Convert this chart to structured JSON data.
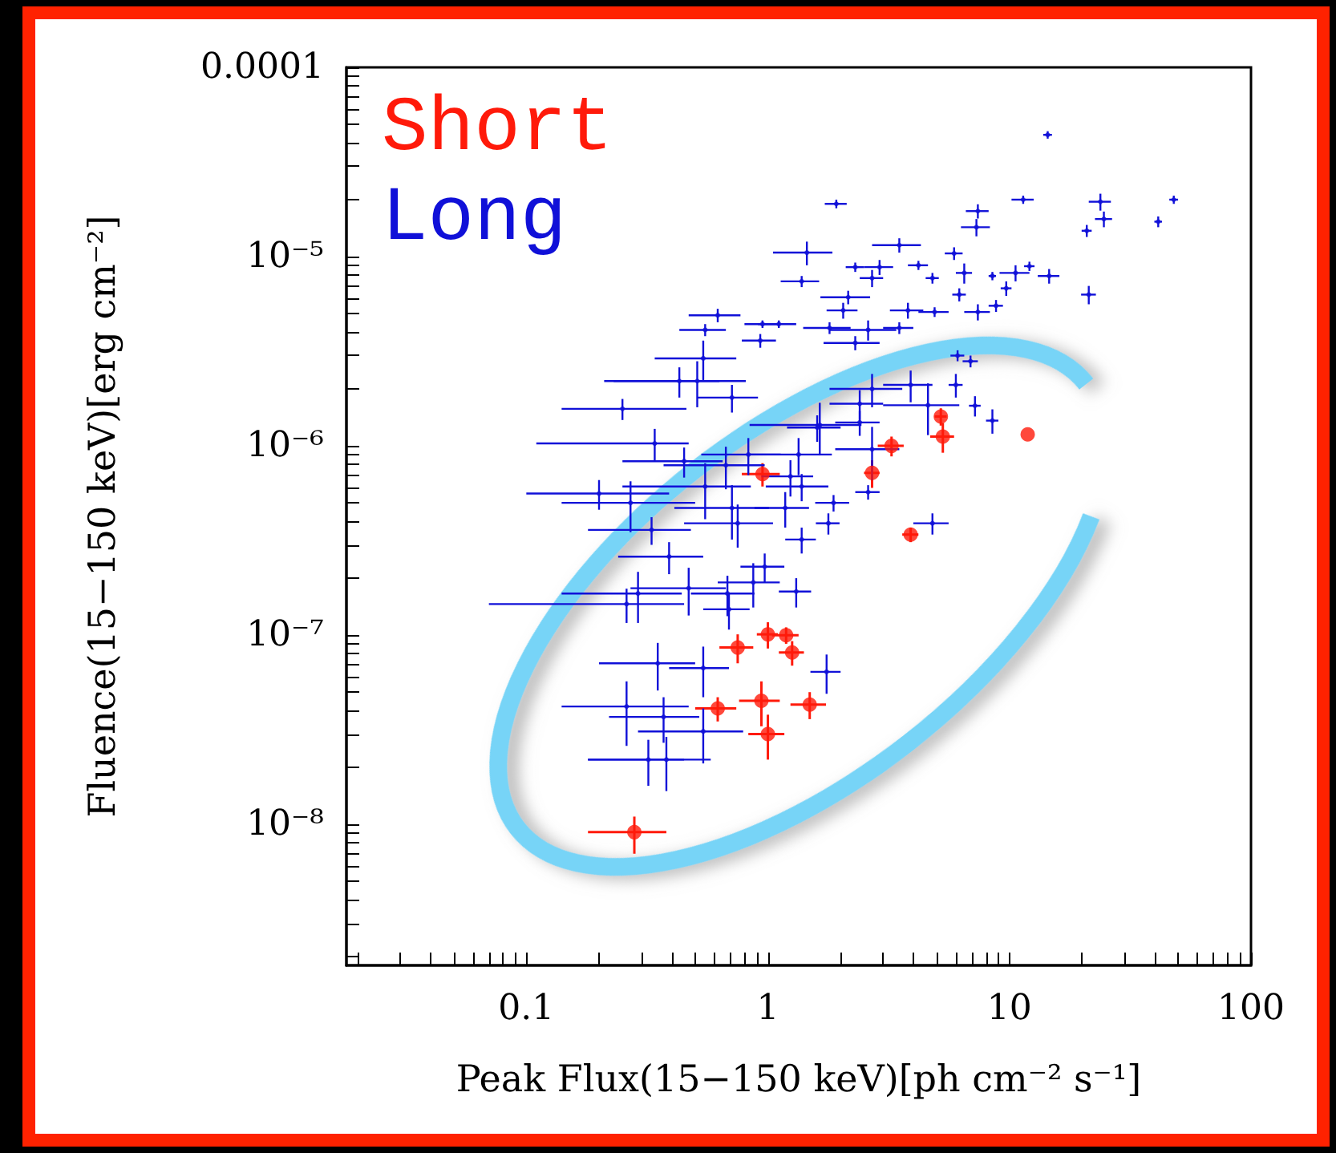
{
  "chart_data": {
    "type": "scatter",
    "xlabel": "Peak Flux(15−150 keV)[ph cm⁻² s⁻¹]",
    "ylabel": "Fluence(15−150 keV)[erg cm⁻²]",
    "log": "xy",
    "legend": "top left",
    "marker": "circle",
    "xlim": [
      0.018,
      100
    ],
    "ylim": [
      1.8e-09,
      0.0001
    ],
    "xticks": [
      {
        "value": 0.02,
        "label": null
      },
      {
        "value": 0.03,
        "label": null
      },
      {
        "value": 0.04,
        "label": null
      },
      {
        "value": 0.05,
        "label": null
      },
      {
        "value": 0.06,
        "label": null
      },
      {
        "value": 0.07,
        "label": null
      },
      {
        "value": 0.08,
        "label": null
      },
      {
        "value": 0.09,
        "label": null
      },
      0.1,
      {
        "value": 0.2,
        "label": null
      },
      {
        "value": 0.3,
        "label": null
      },
      {
        "value": 0.4,
        "label": null
      },
      {
        "value": 0.5,
        "label": null
      },
      {
        "value": 0.6,
        "label": null
      },
      {
        "value": 0.7,
        "label": null
      },
      {
        "value": 0.8,
        "label": null
      },
      {
        "value": 0.9,
        "label": null
      },
      1,
      {
        "value": 2,
        "label": null
      },
      {
        "value": 3,
        "label": null
      },
      {
        "value": 4,
        "label": null
      },
      {
        "value": 5,
        "label": null
      },
      {
        "value": 6,
        "label": null
      },
      {
        "value": 7,
        "label": null
      },
      {
        "value": 8,
        "label": null
      },
      {
        "value": 9,
        "label": null
      },
      10,
      {
        "value": 20,
        "label": null
      },
      {
        "value": 30,
        "label": null
      },
      {
        "value": 40,
        "label": null
      },
      {
        "value": 50,
        "label": null
      },
      {
        "value": 60,
        "label": null
      },
      {
        "value": 70,
        "label": null
      },
      {
        "value": 80,
        "label": null
      },
      {
        "value": 90,
        "label": null
      },
      100
    ],
    "yticks": [
      {
        "value": 2e-09,
        "label": null
      },
      {
        "value": 3e-09,
        "label": null
      },
      {
        "value": 4e-09,
        "label": null
      },
      {
        "value": 5e-09,
        "label": null
      },
      {
        "value": 6e-09,
        "label": null
      },
      {
        "value": 7e-09,
        "label": null
      },
      {
        "value": 8e-09,
        "label": null
      },
      {
        "value": 9e-09,
        "label": null
      },
      {
        "value": 1e-08,
        "label": "10⁻⁸"
      },
      {
        "value": 2e-08,
        "label": null
      },
      {
        "value": 3e-08,
        "label": null
      },
      {
        "value": 4e-08,
        "label": null
      },
      {
        "value": 5e-08,
        "label": null
      },
      {
        "value": 6e-08,
        "label": null
      },
      {
        "value": 7e-08,
        "label": null
      },
      {
        "value": 8e-08,
        "label": null
      },
      {
        "value": 9e-08,
        "label": null
      },
      {
        "value": 1e-07,
        "label": "10⁻⁷"
      },
      {
        "value": 2e-07,
        "label": null
      },
      {
        "value": 3e-07,
        "label": null
      },
      {
        "value": 4e-07,
        "label": null
      },
      {
        "value": 5e-07,
        "label": null
      },
      {
        "value": 6e-07,
        "label": null
      },
      {
        "value": 7e-07,
        "label": null
      },
      {
        "value": 8e-07,
        "label": null
      },
      {
        "value": 9e-07,
        "label": null
      },
      {
        "value": 1e-06,
        "label": "10⁻⁶"
      },
      {
        "value": 2e-06,
        "label": null
      },
      {
        "value": 3e-06,
        "label": null
      },
      {
        "value": 4e-06,
        "label": null
      },
      {
        "value": 5e-06,
        "label": null
      },
      {
        "value": 6e-06,
        "label": null
      },
      {
        "value": 7e-06,
        "label": null
      },
      {
        "value": 8e-06,
        "label": null
      },
      {
        "value": 9e-06,
        "label": null
      },
      {
        "value": 1e-05,
        "label": "10⁻⁵"
      },
      {
        "value": 2e-05,
        "label": null
      },
      {
        "value": 3e-05,
        "label": null
      },
      {
        "value": 4e-05,
        "label": null
      },
      {
        "value": 5e-05,
        "label": null
      },
      {
        "value": 6e-05,
        "label": null
      },
      {
        "value": 7e-05,
        "label": null
      },
      {
        "value": 8e-05,
        "label": null
      },
      {
        "value": 9e-05,
        "label": null
      },
      {
        "value": 0.0001,
        "label": "0.0001"
      }
    ],
    "series": [
      {
        "name": "Short",
        "color": "#ff1a0a",
        "x": [
          0.28,
          0.62,
          0.94,
          1.0,
          1.49,
          0.75,
          1.0,
          1.19,
          1.26,
          0.95,
          5.2,
          5.3,
          3.25,
          2.7,
          11.9,
          3.9
        ],
        "values": [
          9.1e-09,
          4.1e-08,
          4.5e-08,
          3e-08,
          4.3e-08,
          8.6e-08,
          1.01e-07,
          1e-07,
          8.1e-08,
          7.1e-07,
          1.43e-06,
          1.12e-06,
          1e-06,
          7.2e-07,
          1.15e-06,
          3.4e-07
        ],
        "xerrors": [
          [
            0.18,
            0.38
          ],
          0.12,
          0.18,
          0.17,
          0.25,
          0.12,
          0.1,
          0.15,
          0.15,
          0.17,
          0.3,
          0.6,
          0.4,
          0.2,
          null,
          0.3
        ],
        "errors": [
          [
            7e-09,
            1.1e-08
          ],
          6e-09,
          1.2e-08,
          8e-09,
          7e-09,
          1.5e-08,
          1.6e-08,
          1e-08,
          1.2e-08,
          1e-07,
          1.5e-07,
          2e-07,
          1.2e-07,
          1.2e-07,
          null,
          3e-08
        ]
      },
      {
        "name": "Long",
        "color": "#1010d8",
        "x": [
          14.4,
          11.4,
          23.8,
          47.9,
          24.6,
          41.3,
          20.9,
          7.4,
          7.3,
          1.92,
          5.9,
          3.5,
          1.45,
          2.3,
          2.9,
          2.7,
          1.38,
          4.2,
          4.8,
          6.5,
          8.5,
          10.6,
          12.1,
          14.6,
          6.2,
          9.7,
          21.3,
          2.15,
          2.05,
          3.8,
          4.9,
          7.4,
          8.8,
          1.8,
          3.5,
          2.6,
          2.3,
          6.1,
          6.9,
          3.9,
          6.0,
          2.7,
          4.6,
          7.2,
          8.5,
          2.4,
          2.7,
          1.64,
          0.62,
          0.55,
          0.95,
          1.11,
          0.93,
          0.54,
          0.43,
          0.25,
          0.51,
          0.71,
          0.34,
          0.2,
          0.45,
          0.55,
          0.67,
          0.83,
          1.24,
          1.18,
          0.71,
          0.27,
          0.26,
          0.29,
          0.47,
          0.68,
          0.35,
          0.54,
          0.26,
          0.37,
          0.54,
          0.32,
          0.38,
          1.75,
          1.31,
          0.69,
          0.97,
          0.87,
          1.38,
          0.39,
          0.33,
          0.75,
          1.78,
          1.87,
          4.8,
          2.6,
          1.6,
          1.34,
          1.38,
          2.4
        ],
        "values": [
          4.4e-05,
          2e-05,
          1.95e-05,
          2e-05,
          1.58e-05,
          1.53e-05,
          1.37e-05,
          1.74e-05,
          1.43e-05,
          1.9e-05,
          1.04e-05,
          1.15e-05,
          1.05e-05,
          8.8e-06,
          8.8e-06,
          7.7e-06,
          7.4e-06,
          9e-06,
          7.7e-06,
          8.2e-06,
          7.9e-06,
          8.2e-06,
          8.9e-06,
          7.9e-06,
          6.3e-06,
          6.8e-06,
          6.3e-06,
          6.1e-06,
          5.2e-06,
          5.2e-06,
          5.1e-06,
          5.1e-06,
          5.5e-06,
          4.2e-06,
          4.2e-06,
          4.1e-06,
          3.5e-06,
          3e-06,
          2.8e-06,
          2.1e-06,
          2.1e-06,
          2e-06,
          1.64e-06,
          1.63e-06,
          1.36e-06,
          1.67e-06,
          9.6e-07,
          1.29e-06,
          4.9e-06,
          4.1e-06,
          4.4e-06,
          4.4e-06,
          3.6e-06,
          2.9e-06,
          2.2e-06,
          1.57e-06,
          2.2e-06,
          1.8e-06,
          1.03e-06,
          5.6e-07,
          8.3e-07,
          6.1e-07,
          7.9e-07,
          9e-07,
          6.9e-07,
          4.7e-07,
          4.7e-07,
          5e-07,
          1.46e-07,
          1.66e-07,
          1.77e-07,
          1.66e-07,
          7.1e-08,
          6.7e-08,
          4.2e-08,
          3.7e-08,
          3.1e-08,
          2.2e-08,
          2.2e-08,
          6.4e-08,
          1.7e-07,
          1.37e-07,
          2.3e-07,
          1.9e-07,
          3.2e-07,
          2.6e-07,
          3.6e-07,
          3.9e-07,
          3.9e-07,
          5e-07,
          3.9e-07,
          5.7e-07,
          1.25e-06,
          9e-07,
          6.1e-07,
          1.33e-06
        ],
        "xerrors": [
          0.6,
          1.2,
          2.5,
          2,
          2,
          1.5,
          1,
          0.8,
          1,
          0.2,
          0.5,
          0.8,
          0.4,
          0.2,
          0.4,
          0.3,
          0.25,
          0.4,
          0.3,
          0.5,
          0.3,
          1.5,
          0.6,
          1.5,
          0.4,
          0.5,
          1.5,
          0.5,
          0.3,
          0.6,
          0.7,
          0.9,
          0.6,
          0.4,
          0.5,
          0.8,
          0.6,
          0.4,
          0.5,
          0.9,
          0.4,
          0.9,
          1.6,
          0.4,
          0.5,
          0.6,
          0.8,
          0.8,
          0.15,
          0.12,
          0.15,
          0.2,
          0.15,
          0.2,
          0.2,
          [
            0.14,
            0.46
          ],
          0.3,
          0.2,
          [
            0.11,
            0.47
          ],
          [
            0.1,
            0.39
          ],
          0.2,
          0.3,
          0.3,
          0.3,
          0.3,
          0.3,
          0.3,
          [
            0.14,
            0.5
          ],
          [
            0.07,
            0.45
          ],
          0.15,
          0.2,
          0.2,
          0.15,
          0.15,
          [
            0.14,
            0.47
          ],
          0.15,
          0.25,
          [
            0.18,
            0.45
          ],
          0.2,
          0.25,
          0.2,
          0.15,
          0.2,
          0.25,
          0.2,
          0.15,
          0.15,
          0.3,
          0.2,
          0.3,
          0.8,
          0.3,
          0.4,
          0.5,
          0.4,
          0.5
        ],
        "errors": [
          2e-06,
          1e-06,
          2e-06,
          1e-06,
          1.5e-06,
          1e-06,
          1e-06,
          1.5e-06,
          1.5e-06,
          1e-06,
          8e-07,
          1e-06,
          1.5e-06,
          5e-07,
          8e-07,
          8e-07,
          5e-07,
          5e-07,
          5e-07,
          1e-06,
          4e-07,
          8e-07,
          5e-07,
          7e-07,
          5e-07,
          6e-07,
          7e-07,
          5e-07,
          5e-07,
          5e-07,
          3e-07,
          5e-07,
          4e-07,
          3e-07,
          3e-07,
          5e-07,
          3e-07,
          2e-07,
          2e-07,
          4e-07,
          3e-07,
          4e-07,
          5e-07,
          2e-07,
          2e-07,
          3e-07,
          3e-07,
          4e-07,
          4e-07,
          3e-07,
          2e-07,
          2e-07,
          3e-07,
          7e-07,
          4e-07,
          2e-07,
          6e-07,
          3e-07,
          2e-07,
          1e-07,
          1.5e-07,
          2e-07,
          2e-07,
          2e-07,
          1.5e-07,
          1e-07,
          1.5e-07,
          1.5e-07,
          3e-08,
          5e-08,
          5e-08,
          4e-08,
          2e-08,
          2e-08,
          [
            2.6e-08,
            5.7e-08
          ],
          1e-08,
          1e-08,
          6e-09,
          7e-09,
          1.5e-08,
          3e-08,
          3e-08,
          4e-08,
          5e-08,
          5e-08,
          5e-08,
          6e-08,
          1e-07,
          5e-08,
          5e-08,
          5e-08,
          5e-08,
          2e-07,
          2e-07,
          1e-07,
          2e-07
        ]
      }
    ]
  }
}
